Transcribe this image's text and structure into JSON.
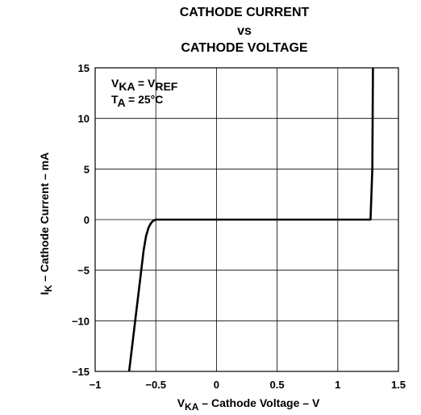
{
  "chart_data": {
    "type": "line",
    "title_lines": [
      "CATHODE CURRENT",
      "vs",
      "CATHODE VOLTAGE"
    ],
    "xlabel": {
      "main": "V",
      "sub": "KA",
      "rest": " – Cathode Voltage – V"
    },
    "ylabel": {
      "main": "I",
      "sub": "K",
      "rest": " – Cathode Current – mA"
    },
    "xlim": [
      -1,
      1.5
    ],
    "ylim": [
      -15,
      15
    ],
    "x_ticks": [
      {
        "value": -1,
        "label": "−1"
      },
      {
        "value": -0.5,
        "label": "−0.5"
      },
      {
        "value": 0,
        "label": "0"
      },
      {
        "value": 0.5,
        "label": "0.5"
      },
      {
        "value": 1,
        "label": "1"
      },
      {
        "value": 1.5,
        "label": "1.5"
      }
    ],
    "y_ticks": [
      {
        "value": 15,
        "label": "15"
      },
      {
        "value": 10,
        "label": "10"
      },
      {
        "value": 5,
        "label": "5"
      },
      {
        "value": 0,
        "label": "0"
      },
      {
        "value": -5,
        "label": "−5"
      },
      {
        "value": -10,
        "label": "−10"
      },
      {
        "value": -15,
        "label": "−15"
      }
    ],
    "grid": true,
    "annotations": [
      {
        "parts": [
          {
            "t": "V"
          },
          {
            "t": "KA",
            "sub": true
          },
          {
            "t": " = V"
          },
          {
            "t": "REF",
            "sub": true
          }
        ]
      },
      {
        "parts": [
          {
            "t": "T"
          },
          {
            "t": "A",
            "sub": true
          },
          {
            "t": " = 25°C"
          }
        ]
      }
    ],
    "series": [
      {
        "x": [
          -0.72,
          -0.6,
          -0.58,
          -0.56,
          -0.54,
          -0.52,
          -0.5,
          -0.45,
          0,
          0.5,
          1.0,
          1.27,
          1.285,
          1.29
        ],
        "y": [
          -15,
          -3,
          -1.6,
          -0.8,
          -0.35,
          -0.1,
          0,
          0,
          0,
          0,
          0,
          0,
          5,
          15
        ]
      }
    ]
  }
}
